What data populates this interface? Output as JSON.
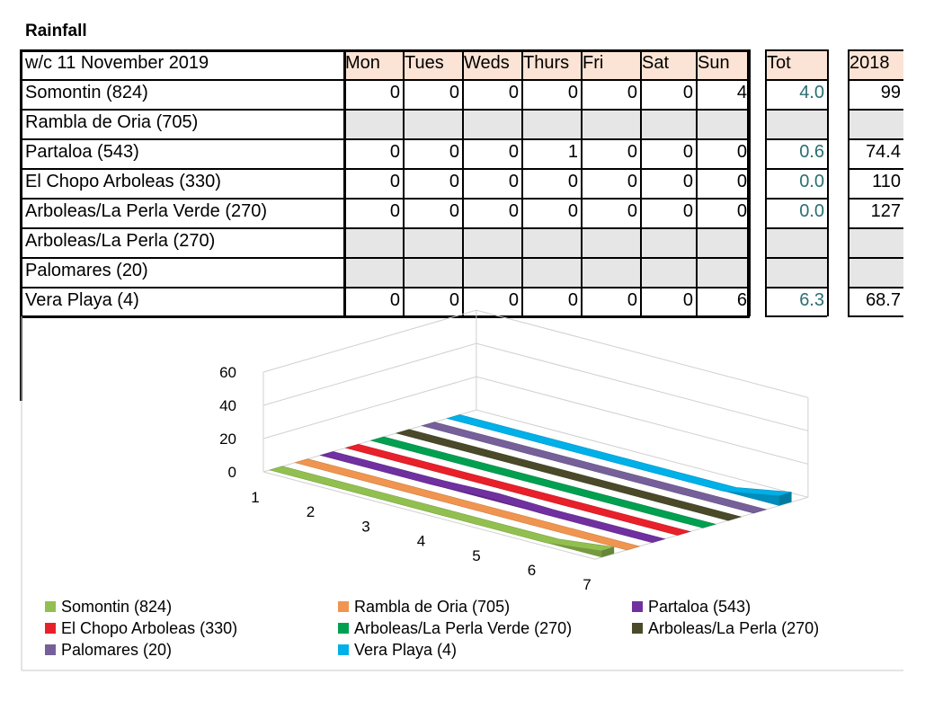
{
  "title": "Rainfall",
  "table": {
    "week_label": "w/c 11 November 2019",
    "days": [
      "Mon",
      "Tues",
      "Weds",
      "Thurs",
      "Fri",
      "Sat",
      "Sun"
    ],
    "tot_header": "Tot",
    "year_header": "2018",
    "rows": [
      {
        "name": "Somontin (824)",
        "values": [
          "0",
          "0",
          "0",
          "0",
          "0",
          "0",
          "4"
        ],
        "tot": "4.0",
        "prev": "99"
      },
      {
        "name": "Rambla de Oria (705)",
        "values": [
          "",
          "",
          "",
          "",
          "",
          "",
          ""
        ],
        "tot": "",
        "prev": ""
      },
      {
        "name": "Partaloa (543)",
        "values": [
          "0",
          "0",
          "0",
          "1",
          "0",
          "0",
          "0"
        ],
        "tot": "0.6",
        "prev": "74.4"
      },
      {
        "name": "El Chopo Arboleas (330)",
        "values": [
          "0",
          "0",
          "0",
          "0",
          "0",
          "0",
          "0"
        ],
        "tot": "0.0",
        "prev": "110"
      },
      {
        "name": "Arboleas/La Perla Verde (270)",
        "values": [
          "0",
          "0",
          "0",
          "0",
          "0",
          "0",
          "0"
        ],
        "tot": "0.0",
        "prev": "127"
      },
      {
        "name": "Arboleas/La Perla (270)",
        "values": [
          "",
          "",
          "",
          "",
          "",
          "",
          ""
        ],
        "tot": "",
        "prev": ""
      },
      {
        "name": "Palomares (20)",
        "values": [
          "",
          "",
          "",
          "",
          "",
          "",
          ""
        ],
        "tot": "",
        "prev": ""
      },
      {
        "name": "Vera Playa (4)",
        "values": [
          "0",
          "0",
          "0",
          "0",
          "0",
          "0",
          "6"
        ],
        "tot": "6.3",
        "prev": "68.7"
      }
    ]
  },
  "chart_data": {
    "type": "area",
    "view": "3d",
    "x": [
      1,
      2,
      3,
      4,
      5,
      6,
      7
    ],
    "ylim": [
      0,
      60
    ],
    "yticks": [
      0,
      20,
      40,
      60
    ],
    "series": [
      {
        "name": "Somontin (824)",
        "color": "#92c050",
        "values": [
          0,
          0,
          0,
          0,
          0,
          0,
          4
        ]
      },
      {
        "name": "Rambla de Oria (705)",
        "color": "#f09550",
        "values": [
          0,
          0,
          0,
          0,
          0,
          0,
          0
        ]
      },
      {
        "name": "Partaloa (543)",
        "color": "#7030a0",
        "values": [
          0,
          0,
          0,
          1,
          0,
          0,
          0
        ]
      },
      {
        "name": "El Chopo Arboleas (330)",
        "color": "#e8202a",
        "values": [
          0,
          0,
          0,
          0,
          0,
          0,
          0
        ]
      },
      {
        "name": "Arboleas/La Perla Verde (270)",
        "color": "#00a050",
        "values": [
          0,
          0,
          0,
          0,
          0,
          0,
          0
        ]
      },
      {
        "name": "Arboleas/La Perla (270)",
        "color": "#4a4a2a",
        "values": [
          0,
          0,
          0,
          0,
          0,
          0,
          0
        ]
      },
      {
        "name": "Palomares (20)",
        "color": "#76609a",
        "values": [
          0,
          0,
          0,
          0,
          0,
          0,
          0
        ]
      },
      {
        "name": "Vera Playa (4)",
        "color": "#00b0e8",
        "values": [
          0,
          0,
          0,
          0,
          0,
          0,
          6
        ]
      }
    ],
    "legend_position": "bottom"
  }
}
